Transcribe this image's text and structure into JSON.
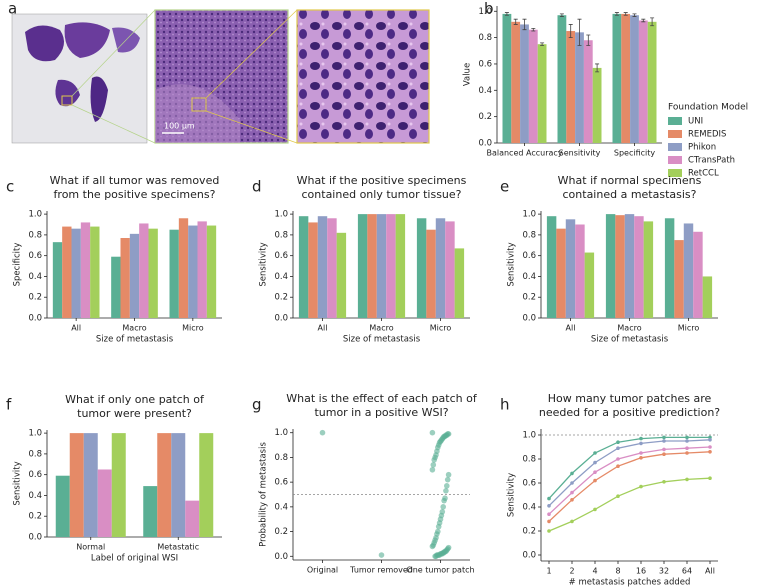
{
  "panel_a": {
    "panel": "a",
    "scale_bar": "100 μm"
  },
  "chart_data": [
    {
      "type": "bar",
      "panel": "b",
      "ylabel": "Value",
      "legend_title": "Foundation Model",
      "legend": "right",
      "categories": [
        "Balanced Accuracy",
        "Sensitivity",
        "Specificity"
      ],
      "series": [
        {
          "name": "UNI",
          "color": "#5aaf94",
          "values": [
            0.98,
            0.97,
            0.98
          ],
          "errors": [
            0.01,
            0.01,
            0.01
          ]
        },
        {
          "name": "REMEDIS",
          "color": "#e58a67",
          "values": [
            0.92,
            0.85,
            0.98
          ],
          "errors": [
            0.02,
            0.05,
            0.01
          ]
        },
        {
          "name": "Phikon",
          "color": "#8e9dc5",
          "values": [
            0.9,
            0.84,
            0.97
          ],
          "errors": [
            0.04,
            0.1,
            0.01
          ]
        },
        {
          "name": "CTransPath",
          "color": "#d98ec4",
          "values": [
            0.86,
            0.78,
            0.93
          ],
          "errors": [
            0.01,
            0.04,
            0.01
          ]
        },
        {
          "name": "RetCCL",
          "color": "#a3cf5b",
          "values": [
            0.75,
            0.57,
            0.92
          ],
          "errors": [
            0.01,
            0.03,
            0.03
          ]
        }
      ],
      "ylim": [
        0,
        1.04
      ],
      "yticks": [
        {
          "value": 0,
          "label": "0.0"
        },
        0.2,
        0.4,
        0.6,
        0.8,
        {
          "value": 1,
          "label": "1.0"
        }
      ]
    },
    {
      "type": "bar",
      "panel": "c",
      "title": [
        "What if all tumor was removed",
        "from the positive specimens?"
      ],
      "xlabel": "Size of metastasis",
      "ylabel": "Specificity",
      "categories": [
        "All",
        "Macro",
        "Micro"
      ],
      "series": [
        {
          "color": "#5aaf94",
          "values": [
            0.73,
            0.59,
            0.85
          ]
        },
        {
          "color": "#e58a67",
          "values": [
            0.88,
            0.77,
            0.96
          ]
        },
        {
          "color": "#8e9dc5",
          "values": [
            0.86,
            0.81,
            0.89
          ]
        },
        {
          "color": "#d98ec4",
          "values": [
            0.92,
            0.91,
            0.93
          ]
        },
        {
          "color": "#a3cf5b",
          "values": [
            0.88,
            0.86,
            0.89
          ]
        }
      ],
      "ylim": [
        0,
        1.03
      ],
      "yticks": [
        {
          "value": 0,
          "label": "0.0"
        },
        0.2,
        0.4,
        0.6,
        0.8,
        {
          "value": 1,
          "label": "1.0"
        }
      ]
    },
    {
      "type": "bar",
      "panel": "d",
      "title": [
        "What if the positive specimens",
        "contained only tumor tissue?"
      ],
      "xlabel": "Size of metastasis",
      "ylabel": "Sensitivity",
      "categories": [
        "All",
        "Macro",
        "Micro"
      ],
      "series": [
        {
          "color": "#5aaf94",
          "values": [
            0.98,
            1.0,
            0.96
          ]
        },
        {
          "color": "#e58a67",
          "values": [
            0.92,
            1.0,
            0.85
          ]
        },
        {
          "color": "#8e9dc5",
          "values": [
            0.98,
            1.0,
            0.96
          ]
        },
        {
          "color": "#d98ec4",
          "values": [
            0.96,
            1.0,
            0.93
          ]
        },
        {
          "color": "#a3cf5b",
          "values": [
            0.82,
            1.0,
            0.67
          ]
        }
      ],
      "ylim": [
        0,
        1.03
      ],
      "yticks": [
        {
          "value": 0,
          "label": "0.0"
        },
        0.2,
        0.4,
        0.6,
        0.8,
        {
          "value": 1,
          "label": "1.0"
        }
      ]
    },
    {
      "type": "bar",
      "panel": "e",
      "title": [
        "What if normal specimens",
        "contained a metastasis?"
      ],
      "xlabel": "Size of metastasis",
      "ylabel": "Sensitivity",
      "categories": [
        "All",
        "Macro",
        "Micro"
      ],
      "series": [
        {
          "color": "#5aaf94",
          "values": [
            0.98,
            1.0,
            0.96
          ]
        },
        {
          "color": "#e58a67",
          "values": [
            0.86,
            0.99,
            0.75
          ]
        },
        {
          "color": "#8e9dc5",
          "values": [
            0.95,
            1.0,
            0.91
          ]
        },
        {
          "color": "#d98ec4",
          "values": [
            0.9,
            0.98,
            0.83
          ]
        },
        {
          "color": "#a3cf5b",
          "values": [
            0.63,
            0.93,
            0.4
          ]
        }
      ],
      "ylim": [
        0,
        1.03
      ],
      "yticks": [
        {
          "value": 0,
          "label": "0.0"
        },
        0.2,
        0.4,
        0.6,
        0.8,
        {
          "value": 1,
          "label": "1.0"
        }
      ]
    },
    {
      "type": "bar",
      "panel": "f",
      "title": [
        "What if only one patch of",
        "tumor were present?"
      ],
      "xlabel": "Label of original WSI",
      "ylabel": "Sensitivity",
      "categories": [
        "Normal",
        "Metastatic"
      ],
      "series": [
        {
          "color": "#5aaf94",
          "values": [
            0.59,
            0.49
          ]
        },
        {
          "color": "#e58a67",
          "values": [
            1.0,
            1.0
          ]
        },
        {
          "color": "#8e9dc5",
          "values": [
            1.0,
            1.0
          ]
        },
        {
          "color": "#d98ec4",
          "values": [
            0.65,
            0.35
          ]
        },
        {
          "color": "#a3cf5b",
          "values": [
            1.0,
            1.0
          ]
        }
      ],
      "ylim": [
        0,
        1.03
      ],
      "yticks": [
        {
          "value": 0,
          "label": "0.0"
        },
        0.2,
        0.4,
        0.6,
        0.8,
        {
          "value": 1,
          "label": "1.0"
        }
      ]
    },
    {
      "type": "strip",
      "panel": "g",
      "title": [
        "What is the effect of each patch of",
        "tumor in a positive WSI?"
      ],
      "ylabel": "Probability of metastasis",
      "categories": [
        "Original",
        "Tumor removed",
        "One tumor patch"
      ],
      "color": "#5aaf94",
      "reference_line": 0.5,
      "values": [
        [
          1.0
        ],
        [
          0.01
        ],
        [
          1.0,
          0.99,
          0.99,
          0.98,
          0.98,
          0.97,
          0.97,
          0.96,
          0.95,
          0.94,
          0.93,
          0.92,
          0.9,
          0.88,
          0.85,
          0.82,
          0.8,
          0.78,
          0.74,
          0.7,
          0.66,
          0.62,
          0.57,
          0.53,
          0.47,
          0.45,
          0.4,
          0.36,
          0.33,
          0.3,
          0.27,
          0.24,
          0.2,
          0.18,
          0.15,
          0.13,
          0.11,
          0.09,
          0.08,
          0.07,
          0.06,
          0.05,
          0.04,
          0.04,
          0.03,
          0.03,
          0.02,
          0.02,
          0.02,
          0.01,
          0.01,
          0.01,
          0.01,
          0.0,
          0.0
        ]
      ],
      "ylim": [
        -0.03,
        1.03
      ],
      "yticks": [
        {
          "value": 0,
          "label": "0.0"
        },
        0.2,
        0.4,
        0.6,
        0.8,
        {
          "value": 1,
          "label": "1.0"
        }
      ]
    },
    {
      "type": "line",
      "panel": "h",
      "title": [
        "How many tumor patches are",
        "needed for a positive prediction?"
      ],
      "xlabel": "# metastasis patches added",
      "ylabel": "Sensitivity",
      "reference_line": 1.0,
      "categories": [
        "1",
        "2",
        "4",
        "8",
        "16",
        "32",
        "64",
        "All"
      ],
      "series": [
        {
          "color": "#5aaf94",
          "values": [
            0.47,
            0.68,
            0.85,
            0.94,
            0.97,
            0.98,
            0.98,
            0.98
          ]
        },
        {
          "color": "#e58a67",
          "values": [
            0.28,
            0.46,
            0.62,
            0.74,
            0.81,
            0.84,
            0.85,
            0.86
          ]
        },
        {
          "color": "#8e9dc5",
          "values": [
            0.41,
            0.6,
            0.77,
            0.89,
            0.93,
            0.95,
            0.95,
            0.96
          ]
        },
        {
          "color": "#d98ec4",
          "values": [
            0.34,
            0.52,
            0.69,
            0.8,
            0.85,
            0.88,
            0.89,
            0.9
          ]
        },
        {
          "color": "#a3cf5b",
          "values": [
            0.2,
            0.28,
            0.38,
            0.49,
            0.57,
            0.61,
            0.63,
            0.64
          ]
        }
      ],
      "ylim": [
        -0.05,
        1.05
      ],
      "yticks": [
        {
          "value": 0,
          "label": "0.0"
        },
        0.2,
        0.4,
        0.6,
        0.8,
        {
          "value": 1,
          "label": "1.0"
        }
      ]
    }
  ]
}
